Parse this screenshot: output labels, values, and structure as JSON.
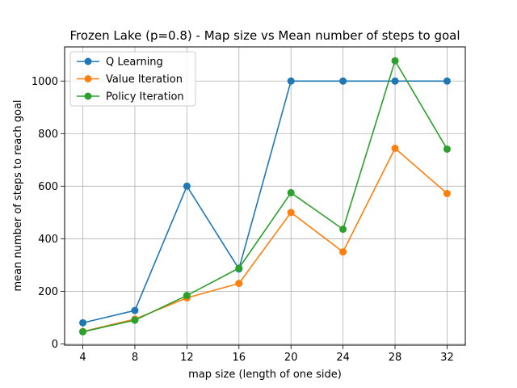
{
  "chart_data": {
    "type": "line",
    "title": "Frozen Lake (p=0.8) - Map size vs Mean number of steps to goal",
    "xlabel": "map size (length of one side)",
    "ylabel": "mean number of steps to reach goal",
    "x": [
      4,
      8,
      12,
      16,
      20,
      24,
      28,
      32
    ],
    "xticks": [
      4,
      8,
      12,
      16,
      20,
      24,
      28,
      32
    ],
    "yticks": [
      0,
      200,
      400,
      600,
      800,
      1000
    ],
    "xlim": [
      2.6,
      33.4
    ],
    "ylim": [
      -5,
      1130
    ],
    "grid": true,
    "legend_position": "top-left",
    "series": [
      {
        "name": "Q Learning",
        "color": "#1f77b4",
        "values": [
          80,
          127,
          600,
          285,
          1000,
          1000,
          1000,
          1000
        ]
      },
      {
        "name": "Value Iteration",
        "color": "#ff7f0e",
        "values": [
          47,
          94,
          175,
          230,
          500,
          350,
          744,
          572
        ]
      },
      {
        "name": "Policy Iteration",
        "color": "#2ca02c",
        "values": [
          46,
          90,
          184,
          288,
          575,
          436,
          1077,
          741
        ]
      }
    ]
  }
}
